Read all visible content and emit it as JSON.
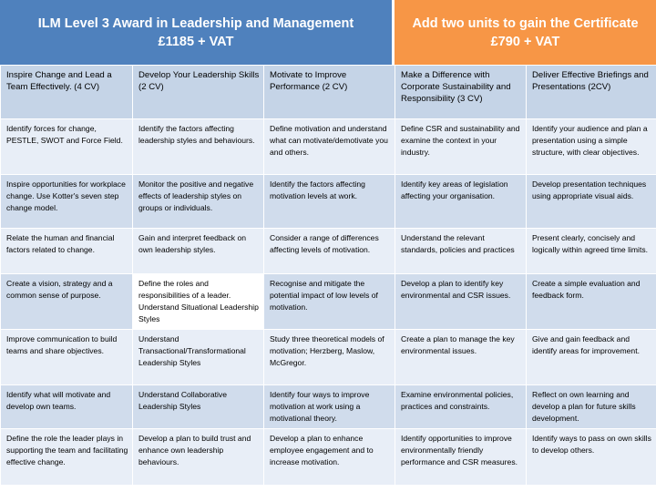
{
  "banners": {
    "left": "ILM Level 3 Award in Leadership and Management\n£1185  + VAT",
    "right": "Add two units to gain the Certificate\n£790 + VAT"
  },
  "colors": {
    "left_banner": "#4f81bd",
    "right_banner": "#f79646"
  },
  "rows": [
    [
      "Inspire Change and Lead a Team Effectively.  (4 CV)",
      "Develop Your Leadership Skills (2 CV)",
      "Motivate to Improve Performance (2 CV)",
      "Make a Difference with Corporate  Sustainability and Responsibility (3 CV)",
      "Deliver Effective Briefings and Presentations (2CV)"
    ],
    [
      "Identify forces for change, PESTLE, SWOT and Force Field.",
      "Identify the factors affecting leadership styles and behaviours.",
      "Define motivation and understand what  can motivate/demotivate you and others.",
      "Define CSR and sustainability and examine the context in your  industry.",
      "Identify your audience and plan a presentation using a simple structure, with clear objectives."
    ],
    [
      "Inspire opportunities for workplace change. Use Kotter's seven step change model.",
      "Monitor the positive and negative effects of leadership styles on groups or individuals.",
      "Identify the factors affecting motivation levels at work.",
      "Identify key areas of legislation affecting your organisation.",
      "Develop presentation techniques using appropriate visual aids."
    ],
    [
      "Relate the human and financial factors related to change.",
      "Gain and interpret feedback on own leadership styles.",
      "Consider a range of differences affecting levels of motivation.",
      "Understand the relevant standards, policies and practices",
      "Present clearly, concisely and logically within agreed time limits."
    ],
    [
      "Create a vision, strategy and a common sense of purpose.",
      "Define the roles and responsibilities of a leader. Understand Situational Leadership Styles",
      "Recognise and mitigate the potential impact of low levels of motivation.",
      "Develop a plan to identify key environmental and CSR issues.",
      "Create a simple evaluation and feedback form."
    ],
    [
      "Improve communication to build teams and share objectives.",
      "Understand Transactional/Transformational Leadership Styles",
      "Study three theoretical models of motivation; Herzberg, Maslow, McGregor.",
      "Create a plan to manage the key environmental issues.",
      "Give and gain feedback and identify areas for improvement."
    ],
    [
      "Identify what will motivate and develop own teams.",
      "Understand Collaborative Leadership Styles",
      "Identify four ways to improve motivation at work using a motivational theory.",
      "Examine environmental policies, practices and constraints.",
      "Reflect on own learning and develop a plan for future skills development."
    ],
    [
      "Define the role the leader plays in supporting the team and facilitating effective change.",
      "Develop a plan to build trust and enhance own leadership behaviours.",
      "Develop a plan to enhance employee engagement  and to increase motivation.",
      "Identify opportunities to improve environmentally friendly performance and CSR measures.",
      "Identify ways to pass on own skills to develop others."
    ]
  ]
}
